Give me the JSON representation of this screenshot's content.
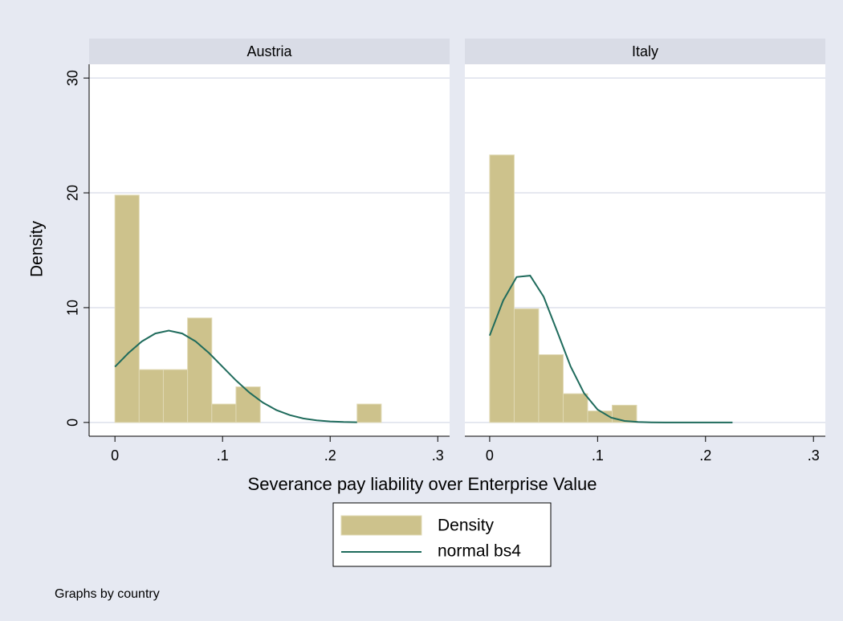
{
  "chart_data": [
    {
      "type": "histogram",
      "title": "Austria",
      "bins": [
        0,
        0.0225,
        0.045,
        0.0675,
        0.09,
        0.1125,
        0.135,
        0.1575,
        0.18,
        0.2025,
        0.225,
        0.2475
      ],
      "series": [
        {
          "color": "#cdc28c",
          "values": [
            19.8,
            4.6,
            4.6,
            9.1,
            1.6,
            3.1,
            0,
            0,
            0,
            0,
            1.6
          ]
        },
        {
          "type": "line",
          "color": "#1f6b5c",
          "x": [
            0,
            0.0125,
            0.025,
            0.0375,
            0.05,
            0.0625,
            0.075,
            0.0875,
            0.1,
            0.1125,
            0.125,
            0.1375,
            0.15,
            0.1625,
            0.175,
            0.1875,
            0.2,
            0.2125,
            0.225
          ],
          "values": [
            4.85,
            6.04,
            7.06,
            7.75,
            8,
            7.75,
            7.06,
            6.04,
            4.85,
            3.66,
            2.6,
            1.73,
            1.08,
            0.64,
            0.35,
            0.18,
            0.09,
            0.04,
            0.02
          ]
        }
      ],
      "xlim": [
        -0.024,
        0.311
      ],
      "xticks": [
        0,
        {
          "value": 0.1,
          "label": ".1"
        },
        {
          "value": 0.2,
          "label": ".2"
        },
        {
          "value": 0.3,
          "label": ".3"
        }
      ],
      "ylim": [
        -1.2,
        31.2
      ],
      "yticks": [
        0,
        10,
        20,
        30
      ],
      "grid": true
    },
    {
      "type": "histogram",
      "title": "Italy",
      "bins": [
        0,
        0.0227,
        0.0454,
        0.0681,
        0.0908,
        0.1135,
        0.1362
      ],
      "series": [
        {
          "color": "#cdc28c",
          "values": [
            23.3,
            9.9,
            5.9,
            2.5,
            1.0,
            1.5
          ]
        },
        {
          "type": "line",
          "color": "#1f6b5c",
          "x": [
            0,
            0.0125,
            0.025,
            0.0375,
            0.05,
            0.0625,
            0.075,
            0.0875,
            0.1,
            0.1125,
            0.125,
            0.1375,
            0.15,
            0.1625,
            0.175,
            0.2,
            0.225
          ],
          "values": [
            7.57,
            10.62,
            12.67,
            12.79,
            10.95,
            7.94,
            4.87,
            2.54,
            1.12,
            0.42,
            0.13,
            0.04,
            0.01,
            0,
            0,
            0,
            0
          ]
        }
      ],
      "xlim": [
        -0.023,
        0.311
      ],
      "xticks": [
        0,
        {
          "value": 0.1,
          "label": ".1"
        },
        {
          "value": 0.2,
          "label": ".2"
        },
        {
          "value": 0.3,
          "label": ".3"
        }
      ],
      "ylim": [
        -1.2,
        31.2
      ],
      "yticks": [
        0,
        10,
        20,
        30
      ],
      "grid": true
    }
  ],
  "ylabel": "Density",
  "xlabel": "Severance pay liability over Enterprise Value",
  "legend": [
    "Density",
    "normal bs4"
  ],
  "note": "Graphs by country"
}
